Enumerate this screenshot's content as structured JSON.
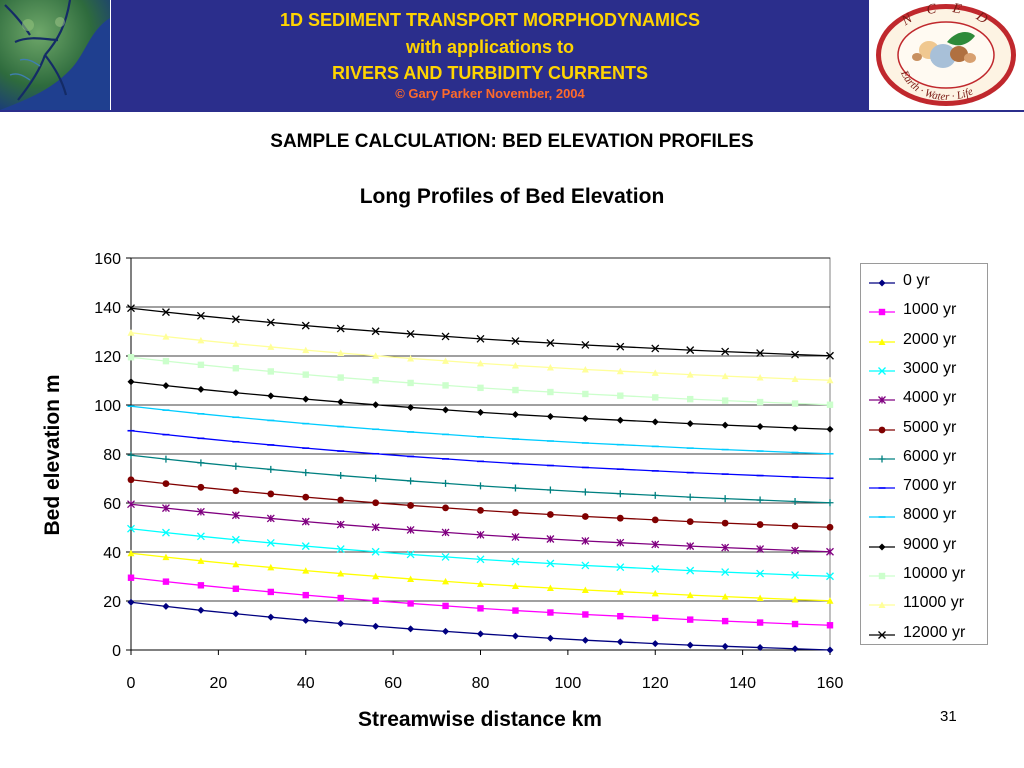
{
  "header": {
    "line1": "1D SEDIMENT TRANSPORT MORPHODYNAMICS",
    "line2": "with applications to",
    "line3": "RIVERS AND TURBIDITY CURRENTS",
    "copyright": "© Gary Parker November, 2004",
    "logo_text": "N C E D",
    "logo_ring_text": "Earth · Water · Life"
  },
  "slide_title": "SAMPLE CALCULATION: BED ELEVATION PROFILES",
  "page_number": "31",
  "chart_data": {
    "type": "line",
    "title": "Long Profiles of Bed Elevation",
    "xlabel": "Streamwise distance km",
    "ylabel": "Bed elevation m",
    "xlim": [
      0,
      160
    ],
    "ylim": [
      0,
      160
    ],
    "xticks": [
      0,
      20,
      40,
      60,
      80,
      100,
      120,
      140,
      160
    ],
    "yticks": [
      0,
      20,
      40,
      60,
      80,
      100,
      120,
      140,
      160
    ],
    "grid": "horizontal",
    "legend_position": "right",
    "x": [
      0,
      8,
      16,
      24,
      32,
      40,
      48,
      56,
      64,
      72,
      80,
      88,
      96,
      104,
      112,
      120,
      128,
      136,
      144,
      152,
      160
    ],
    "series": [
      {
        "name": "0 yr",
        "color": "#000080",
        "marker": "diamond",
        "values": [
          19.5,
          17.8,
          16.2,
          14.8,
          13.4,
          12.1,
          10.8,
          9.7,
          8.6,
          7.6,
          6.6,
          5.7,
          4.8,
          4.0,
          3.3,
          2.6,
          2.0,
          1.5,
          1.0,
          0.5,
          0.0
        ]
      },
      {
        "name": "1000 yr",
        "color": "#ff00ff",
        "marker": "square",
        "values": [
          29.5,
          27.9,
          26.4,
          25.0,
          23.7,
          22.4,
          21.2,
          20.1,
          19.0,
          18.0,
          17.0,
          16.1,
          15.3,
          14.5,
          13.8,
          13.1,
          12.4,
          11.8,
          11.2,
          10.6,
          10.1
        ]
      },
      {
        "name": "2000 yr",
        "color": "#ffff00",
        "marker": "triangle",
        "values": [
          39.5,
          37.9,
          36.4,
          35.0,
          33.7,
          32.4,
          31.2,
          30.1,
          29.0,
          28.0,
          27.0,
          26.1,
          25.3,
          24.5,
          23.8,
          23.1,
          22.4,
          21.8,
          21.2,
          20.6,
          20.1
        ]
      },
      {
        "name": "3000 yr",
        "color": "#00ffff",
        "marker": "x",
        "values": [
          49.5,
          47.9,
          46.4,
          45.0,
          43.7,
          42.4,
          41.2,
          40.1,
          39.0,
          38.0,
          37.0,
          36.1,
          35.3,
          34.5,
          33.8,
          33.1,
          32.4,
          31.8,
          31.2,
          30.6,
          30.1
        ]
      },
      {
        "name": "4000 yr",
        "color": "#800080",
        "marker": "star",
        "values": [
          59.5,
          57.9,
          56.4,
          55.0,
          53.7,
          52.4,
          51.2,
          50.1,
          49.0,
          48.0,
          47.0,
          46.1,
          45.3,
          44.5,
          43.8,
          43.1,
          42.4,
          41.8,
          41.2,
          40.6,
          40.1
        ]
      },
      {
        "name": "5000 yr",
        "color": "#800000",
        "marker": "circle",
        "values": [
          69.5,
          67.9,
          66.4,
          65.0,
          63.7,
          62.4,
          61.2,
          60.1,
          59.0,
          58.0,
          57.0,
          56.1,
          55.3,
          54.5,
          53.8,
          53.1,
          52.4,
          51.8,
          51.2,
          50.6,
          50.1
        ]
      },
      {
        "name": "6000 yr",
        "color": "#008080",
        "marker": "plus",
        "values": [
          79.5,
          77.9,
          76.4,
          75.0,
          73.7,
          72.4,
          71.2,
          70.1,
          69.0,
          68.0,
          67.0,
          66.1,
          65.3,
          64.5,
          63.8,
          63.1,
          62.4,
          61.8,
          61.2,
          60.6,
          60.1
        ]
      },
      {
        "name": "7000 yr",
        "color": "#0000ff",
        "marker": "dash",
        "values": [
          89.5,
          87.9,
          86.4,
          85.0,
          83.7,
          82.4,
          81.2,
          80.1,
          79.0,
          78.0,
          77.0,
          76.1,
          75.3,
          74.5,
          73.8,
          73.1,
          72.4,
          71.8,
          71.2,
          70.6,
          70.1
        ]
      },
      {
        "name": "8000 yr",
        "color": "#00ccff",
        "marker": "dash",
        "values": [
          99.5,
          97.9,
          96.4,
          95.0,
          93.7,
          92.4,
          91.2,
          90.1,
          89.0,
          88.0,
          87.0,
          86.1,
          85.3,
          84.5,
          83.8,
          83.1,
          82.4,
          81.8,
          81.2,
          80.6,
          80.1
        ]
      },
      {
        "name": "9000 yr",
        "color": "#000000",
        "marker": "diamond",
        "values": [
          109.5,
          107.9,
          106.4,
          105.0,
          103.7,
          102.4,
          101.2,
          100.1,
          99.0,
          98.0,
          97.0,
          96.1,
          95.3,
          94.5,
          93.8,
          93.1,
          92.4,
          91.8,
          91.2,
          90.6,
          90.1
        ]
      },
      {
        "name": "10000 yr",
        "color": "#ccffcc",
        "marker": "square",
        "values": [
          119.5,
          117.9,
          116.4,
          115.0,
          113.7,
          112.4,
          111.2,
          110.1,
          109.0,
          108.0,
          107.0,
          106.1,
          105.3,
          104.5,
          103.8,
          103.1,
          102.4,
          101.8,
          101.2,
          100.6,
          100.1
        ]
      },
      {
        "name": "11000 yr",
        "color": "#ffff99",
        "marker": "triangle",
        "values": [
          129.5,
          127.9,
          126.4,
          125.0,
          123.7,
          122.4,
          121.2,
          120.1,
          119.0,
          118.0,
          117.0,
          116.1,
          115.3,
          114.5,
          113.8,
          113.1,
          112.4,
          111.8,
          111.2,
          110.6,
          110.1
        ]
      },
      {
        "name": "12000 yr",
        "color": "#000000",
        "marker": "x",
        "values": [
          139.5,
          137.9,
          136.4,
          135.0,
          133.7,
          132.4,
          131.2,
          130.1,
          129.0,
          128.0,
          127.0,
          126.1,
          125.3,
          124.5,
          123.8,
          123.1,
          122.4,
          121.8,
          121.2,
          120.6,
          120.1
        ]
      }
    ]
  }
}
